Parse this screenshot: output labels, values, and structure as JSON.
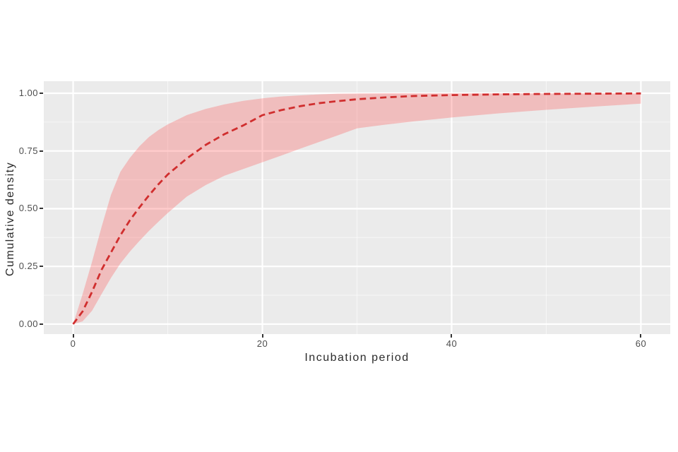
{
  "figure": {
    "background": "#ffffff",
    "panel_background": "#ebebeb",
    "grid_major_color": "#ffffff",
    "grid_minor_color": "#ffffff",
    "grid_minor_opacity": 0.55,
    "tick_color": "#333333",
    "tick_label_color": "#4d4d4d",
    "axis_title_color": "#2b2b2b"
  },
  "chart_data": {
    "type": "line",
    "title": "",
    "xlabel": "Incubation period",
    "ylabel": "Cumulative density",
    "xlim": [
      -3.1,
      63.1
    ],
    "ylim": [
      -0.043,
      1.052
    ],
    "grid": true,
    "legend": "none",
    "x_ticks": {
      "values": [
        0,
        20,
        40,
        60
      ],
      "labels": [
        "0",
        "20",
        "40",
        "60"
      ],
      "minor": [
        10,
        30,
        50
      ]
    },
    "y_ticks": {
      "values": [
        0,
        0.25,
        0.5,
        0.75,
        1
      ],
      "labels": [
        "0.00",
        "0.25",
        "0.50",
        "0.75",
        "1.00"
      ],
      "minor": [
        0.125,
        0.375,
        0.625,
        0.875
      ]
    },
    "x": [
      0,
      1,
      2,
      3,
      4,
      5,
      6,
      7,
      8,
      9,
      10,
      12,
      14,
      16,
      18,
      20,
      22,
      24,
      26,
      28,
      30,
      33,
      36,
      40,
      45,
      50,
      55,
      60
    ],
    "series": [
      {
        "name": "Median cumulative density",
        "role": "median",
        "line_style": "dashed",
        "color": "#d02e2e",
        "values": [
          0,
          0.055,
          0.14,
          0.235,
          0.31,
          0.385,
          0.45,
          0.505,
          0.557,
          0.605,
          0.648,
          0.717,
          0.776,
          0.823,
          0.861,
          0.905,
          0.927,
          0.944,
          0.957,
          0.966,
          0.974,
          0.982,
          0.988,
          0.992,
          0.995,
          0.997,
          0.998,
          0.999
        ]
      },
      {
        "name": "95% CI upper bound",
        "role": "band_upper",
        "fill": "rgba(255,65,65,0.27)",
        "values": [
          0,
          0.13,
          0.27,
          0.42,
          0.56,
          0.66,
          0.72,
          0.77,
          0.81,
          0.84,
          0.865,
          0.905,
          0.932,
          0.952,
          0.967,
          0.978,
          0.986,
          0.991,
          0.995,
          0.998,
          0.999,
          1,
          1,
          1,
          1,
          1,
          1,
          1
        ]
      },
      {
        "name": "95% CI lower bound",
        "role": "band_lower",
        "fill": "rgba(255,65,65,0.27)",
        "values": [
          0,
          0.012,
          0.058,
          0.13,
          0.2,
          0.263,
          0.314,
          0.36,
          0.403,
          0.443,
          0.481,
          0.552,
          0.602,
          0.643,
          0.672,
          0.701,
          0.73,
          0.76,
          0.789,
          0.818,
          0.848,
          0.864,
          0.878,
          0.895,
          0.913,
          0.928,
          0.942,
          0.955
        ]
      }
    ]
  }
}
